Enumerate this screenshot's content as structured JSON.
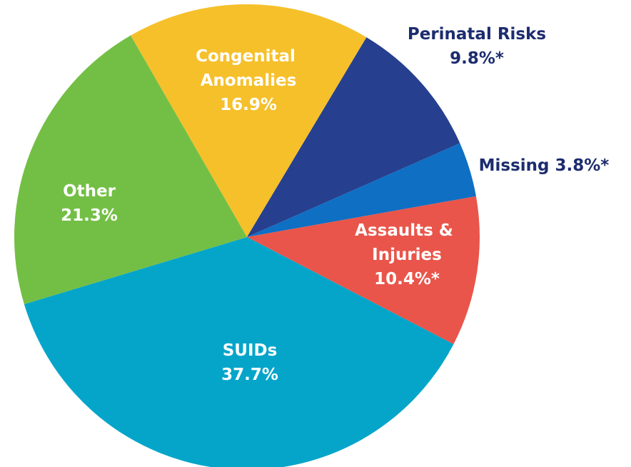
{
  "chart_data": {
    "type": "pie",
    "categories": [
      "Congenital Anomalies",
      "Perinatal Risks",
      "Missing",
      "Assaults & Injuries",
      "SUIDs",
      "Other"
    ],
    "values": [
      16.9,
      9.8,
      3.8,
      10.4,
      37.7,
      21.3
    ],
    "value_labels": [
      "16.9%",
      "9.8%*",
      "3.8%*",
      "10.4%*",
      "37.7%",
      "21.3%"
    ],
    "colors": [
      "#f6c02b",
      "#263f8e",
      "#0f6fc3",
      "#e9554a",
      "#05a5ca",
      "#73bf45"
    ]
  }
}
